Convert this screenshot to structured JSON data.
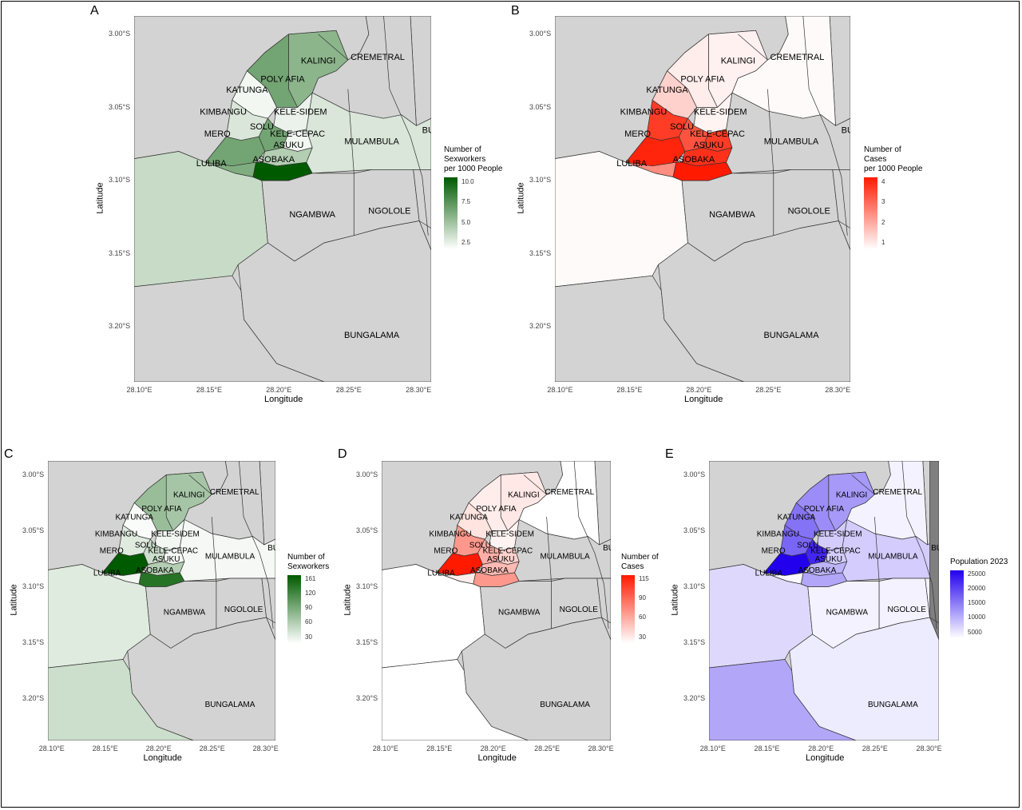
{
  "panels": [
    {
      "letter": "A",
      "legend_title": [
        "Number of",
        "Sexworkers",
        "per 1000 People"
      ],
      "legend_ticks": [
        "10.0",
        "7.5",
        "5.0",
        "2.5"
      ],
      "palette": "green",
      "values": {
        "KALINGI": 0.45,
        "POLY AFIA": 0.55,
        "KATUNGA": 0.05,
        "KIMBANGU": 0.15,
        "KELE-SIDEM": 0.08,
        "SOLU": 0.55,
        "KELE-CEPAC": 0.05,
        "MERO": 0.55,
        "ASUKU": 0.3,
        "ASOBAKA": 1.0,
        "LULIBA": 0.5,
        "MULAMBULA": 0.15,
        "SOUTHWEST": 0.22,
        "CREMETRAL": null,
        "NGAMBWA": null,
        "NGOLOLE": null,
        "BUNGALAMA": null,
        "EAST": null,
        "NORTH": null
      }
    },
    {
      "letter": "B",
      "legend_title": [
        "Number of",
        "Cases",
        "per 1000 People"
      ],
      "legend_ticks": [
        "4",
        "3",
        "2",
        "1"
      ],
      "palette": "red",
      "values": {
        "KALINGI": 0.06,
        "POLY AFIA": 0.08,
        "KATUNGA": 0.2,
        "KIMBANGU": 0.85,
        "KELE-SIDEM": 0.05,
        "SOLU": 0.75,
        "KELE-CEPAC": 0.85,
        "MERO": 0.95,
        "ASUKU": 0.9,
        "ASOBAKA": 1.0,
        "LULIBA": 0.5,
        "MULAMBULA": null,
        "SOUTHWEST": 0.02,
        "CREMETRAL": 0.02,
        "NGAMBWA": null,
        "NGOLOLE": null,
        "BUNGALAMA": null,
        "EAST": null,
        "NORTH": null
      }
    },
    {
      "letter": "C",
      "legend_title": [
        "Number of",
        "Sexworkers"
      ],
      "legend_ticks": [
        "161",
        "120",
        "90",
        "60",
        "30"
      ],
      "palette": "green",
      "values": {
        "KALINGI": 0.35,
        "POLY AFIA": 0.4,
        "KATUNGA": 0.02,
        "KIMBANGU": 0.12,
        "KELE-SIDEM": 0.05,
        "SOLU": 0.2,
        "KELE-CEPAC": 0.05,
        "MERO": 1.0,
        "ASUKU": 0.3,
        "ASOBAKA": 0.85,
        "LULIBA": 0.05,
        "MULAMBULA": 0.04,
        "SOUTHWEST": 0.12,
        "SOUTHWEST2": 0.2,
        "CREMETRAL": null,
        "NGAMBWA": null,
        "NGOLOLE": null,
        "BUNGALAMA": null,
        "EAST": null,
        "NORTH": null
      }
    },
    {
      "letter": "D",
      "legend_title": [
        "Number of",
        "Cases"
      ],
      "legend_ticks": [
        "115",
        "90",
        "60",
        "30"
      ],
      "palette": "red",
      "values": {
        "KALINGI": 0.1,
        "POLY AFIA": 0.08,
        "KATUNGA": 0.12,
        "KIMBANGU": 0.45,
        "KELE-SIDEM": 0.05,
        "SOLU": 0.35,
        "KELE-CEPAC": 0.2,
        "MERO": 1.0,
        "ASUKU": 0.3,
        "ASOBAKA": 0.45,
        "LULIBA": 0.08,
        "MULAMBULA": null,
        "SOUTHWEST": 0.0,
        "SOUTHWEST2": 0.0,
        "CREMETRAL": 0.0,
        "NGAMBWA": null,
        "NGOLOLE": null,
        "BUNGALAMA": null,
        "EAST": null,
        "NORTH": null
      }
    },
    {
      "letter": "E",
      "legend_title": [
        "Population 2023"
      ],
      "legend_ticks": [
        "25000",
        "20000",
        "15000",
        "10000",
        "5000"
      ],
      "palette": "blue",
      "values": {
        "KALINGI": 0.4,
        "POLY AFIA": 0.45,
        "KATUNGA": 0.55,
        "KIMBANGU": 0.6,
        "KELE-SIDEM": 0.2,
        "SOLU": 0.85,
        "KELE-CEPAC": 0.2,
        "MERO": 1.0,
        "ASUKU": 0.3,
        "ASOBAKA": 0.35,
        "LULIBA": 0.02,
        "MULAMBULA": 0.2,
        "SOUTHWEST": 0.15,
        "SOUTHWEST2": 0.35,
        "CREMETRAL": 0.05,
        "NGAMBWA": 0.05,
        "NGOLOLE": 0.05,
        "BUNGALAMA": 0.08,
        "EAST": 0.05,
        "FAREAST": "dark",
        "NORTH": null
      }
    }
  ],
  "region_labels": [
    "KALINGI",
    "CREMETRAL",
    "POLY AFIA",
    "KATUNGA",
    "KIMBANGU",
    "KELE-SIDEM",
    "SOLU",
    "MERO",
    "KELE-CEPAC",
    "ASUKU",
    "MULAMBULA",
    "LULIBA",
    "ASOBAKA",
    "NGAMBWA",
    "NGOLOLE",
    "BUNGALAMA",
    "BU"
  ],
  "x_ticks": [
    "28.10°E",
    "28.15°E",
    "28.20°E",
    "28.25°E",
    "28.30°E"
  ],
  "y_ticks": [
    "3.00°S",
    "3.05°S",
    "3.10°S",
    "3.15°S",
    "3.20°S"
  ],
  "x_axis_title": "Longitude",
  "y_axis_title": "Latitude",
  "colors": {
    "missing": "#d3d3d3",
    "border": "#333333",
    "green": "#005a00",
    "red": "#ff1a00",
    "blue": "#2200ee",
    "dark": "#7f7f7f"
  }
}
